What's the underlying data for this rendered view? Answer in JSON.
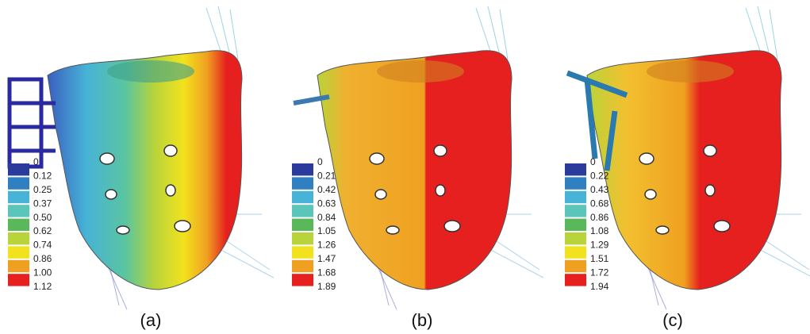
{
  "panels": [
    {
      "label": "(a)",
      "legend": [
        "0",
        "0.12",
        "0.25",
        "0.37",
        "0.50",
        "0.62",
        "0.74",
        "0.86",
        "1.00",
        "1.12"
      ]
    },
    {
      "label": "(b)",
      "legend": [
        "0",
        "0.21",
        "0.42",
        "0.63",
        "0.84",
        "1.05",
        "1.26",
        "1.47",
        "1.68",
        "1.89"
      ]
    },
    {
      "label": "(c)",
      "legend": [
        "0",
        "0.22",
        "0.43",
        "0.68",
        "0.86",
        "1.08",
        "1.29",
        "1.51",
        "1.72",
        "1.94"
      ]
    }
  ]
}
